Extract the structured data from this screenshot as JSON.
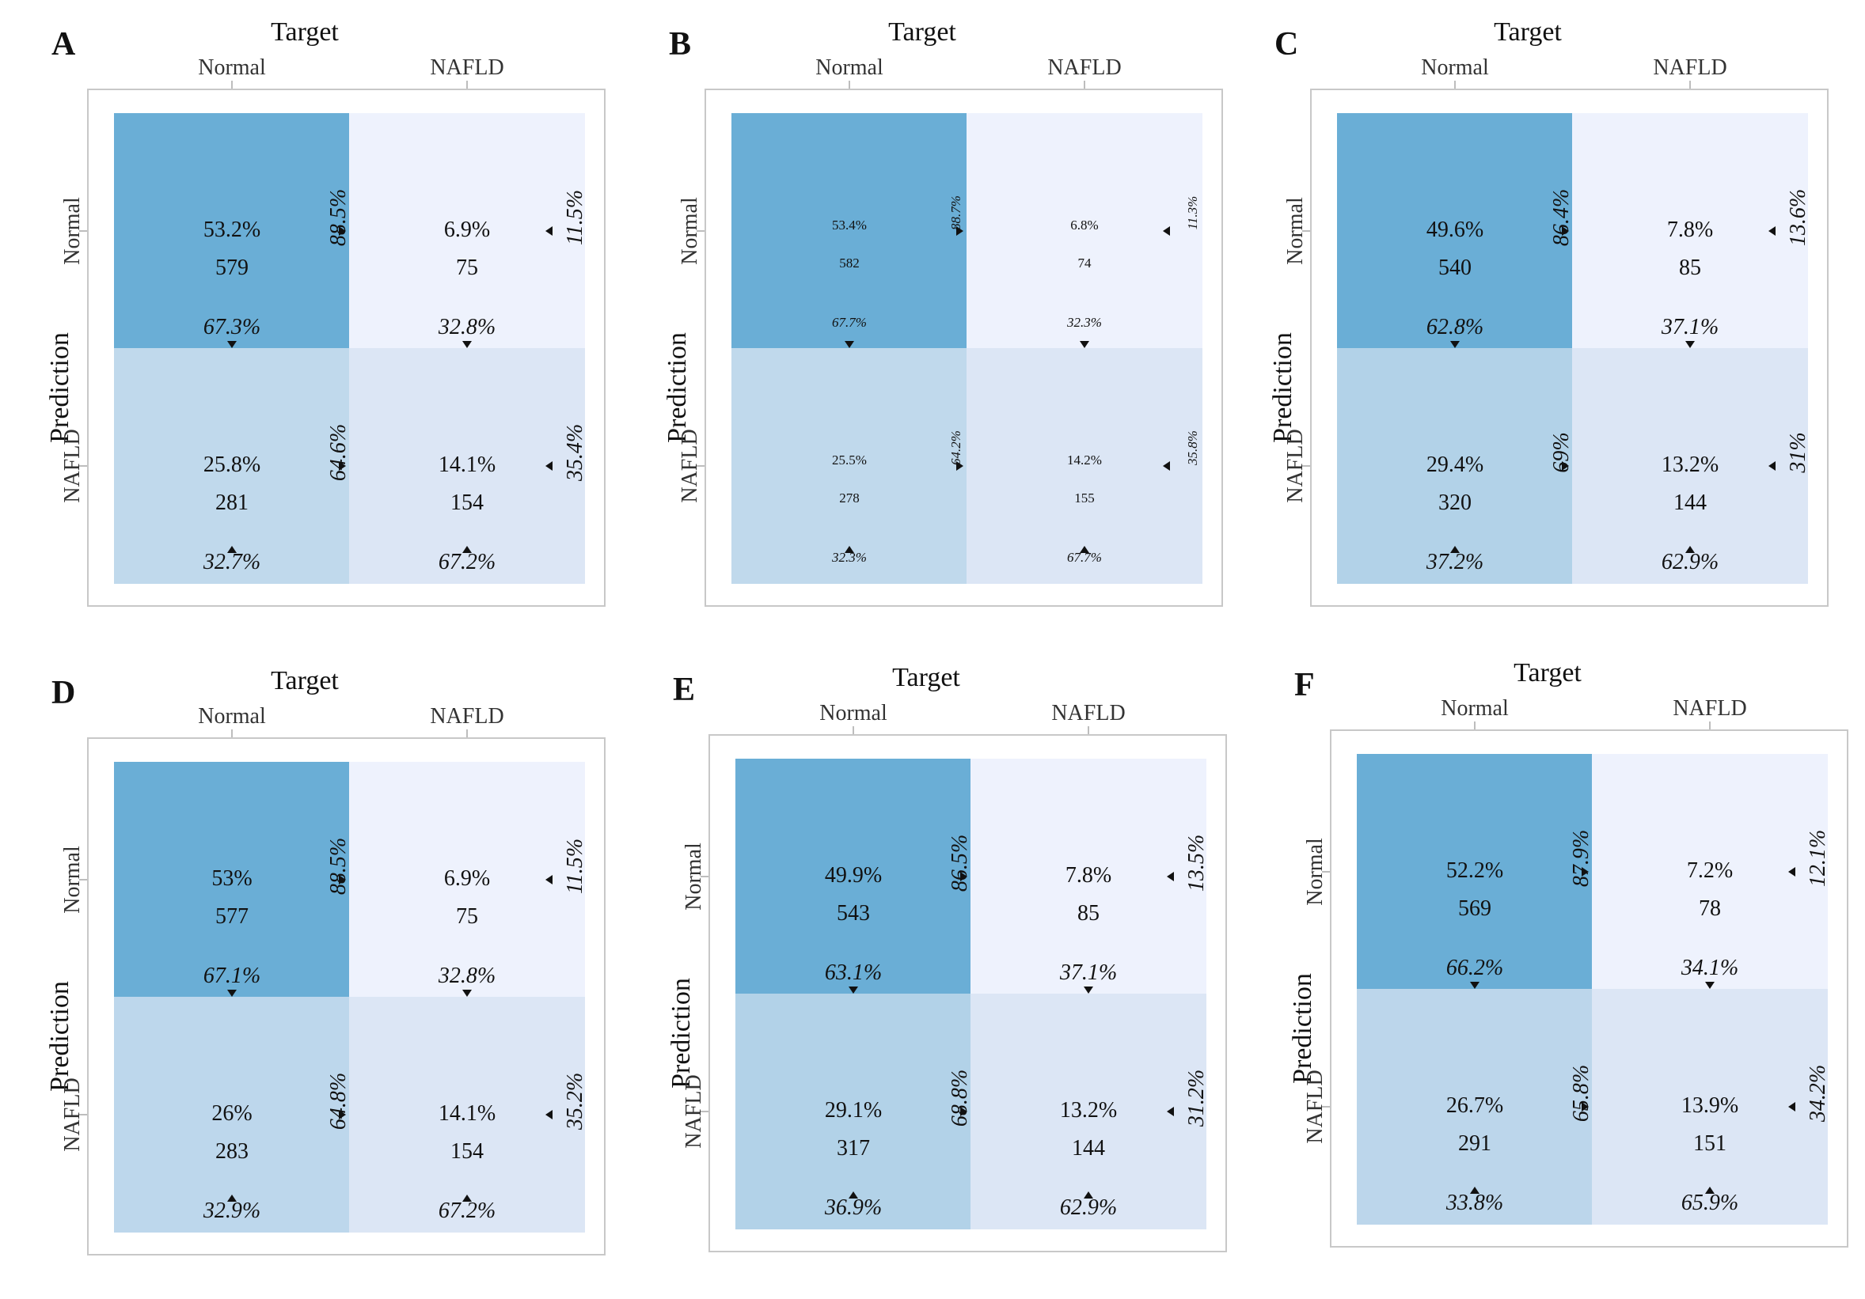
{
  "chart_data": [
    {
      "type": "heatmap",
      "panel": "A",
      "title": "Target",
      "xlabel": "Target",
      "ylabel": "Prediction",
      "columns": [
        "Normal",
        "NAFLD"
      ],
      "rows": [
        "Normal",
        "NAFLD"
      ],
      "cells": [
        [
          {
            "pct": "53.2%",
            "count": "579",
            "row_pct": "88.5%",
            "col_pct": "67.3%"
          },
          {
            "pct": "6.9%",
            "count": "75",
            "row_pct": "11.5%",
            "col_pct": "32.8%"
          }
        ],
        [
          {
            "pct": "25.8%",
            "count": "281",
            "row_pct": "64.6%",
            "col_pct": "32.7%"
          },
          {
            "pct": "14.1%",
            "count": "154",
            "row_pct": "35.4%",
            "col_pct": "67.2%"
          }
        ]
      ],
      "colors": [
        [
          "#6aaed6",
          "#eef2fd"
        ],
        [
          "#c0d9ec",
          "#dce6f5"
        ]
      ]
    },
    {
      "type": "heatmap",
      "panel": "B",
      "title": "Target",
      "xlabel": "Target",
      "ylabel": "Prediction",
      "columns": [
        "Normal",
        "NAFLD"
      ],
      "rows": [
        "Normal",
        "NAFLD"
      ],
      "cells": [
        [
          {
            "pct": "53.4%",
            "count": "582",
            "row_pct": "88.7%",
            "col_pct": "67.7%"
          },
          {
            "pct": "6.8%",
            "count": "74",
            "row_pct": "11.3%",
            "col_pct": "32.3%"
          }
        ],
        [
          {
            "pct": "25.5%",
            "count": "278",
            "row_pct": "64.2%",
            "col_pct": "32.3%"
          },
          {
            "pct": "14.2%",
            "count": "155",
            "row_pct": "35.8%",
            "col_pct": "67.7%"
          }
        ]
      ],
      "colors": [
        [
          "#6aaed6",
          "#eef2fd"
        ],
        [
          "#c0d9ec",
          "#dce6f5"
        ]
      ]
    },
    {
      "type": "heatmap",
      "panel": "C",
      "title": "Target",
      "xlabel": "Target",
      "ylabel": "Prediction",
      "columns": [
        "Normal",
        "NAFLD"
      ],
      "rows": [
        "Normal",
        "NAFLD"
      ],
      "cells": [
        [
          {
            "pct": "49.6%",
            "count": "540",
            "row_pct": "86.4%",
            "col_pct": "62.8%"
          },
          {
            "pct": "7.8%",
            "count": "85",
            "row_pct": "13.6%",
            "col_pct": "37.1%"
          }
        ],
        [
          {
            "pct": "29.4%",
            "count": "320",
            "row_pct": "69%",
            "col_pct": "37.2%"
          },
          {
            "pct": "13.2%",
            "count": "144",
            "row_pct": "31%",
            "col_pct": "62.9%"
          }
        ]
      ],
      "colors": [
        [
          "#6aaed6",
          "#eef2fd"
        ],
        [
          "#b2d2e8",
          "#dce6f5"
        ]
      ]
    },
    {
      "type": "heatmap",
      "panel": "D",
      "title": "Target",
      "xlabel": "Target",
      "ylabel": "Prediction",
      "columns": [
        "Normal",
        "NAFLD"
      ],
      "rows": [
        "Normal",
        "NAFLD"
      ],
      "cells": [
        [
          {
            "pct": "53%",
            "count": "577",
            "row_pct": "88.5%",
            "col_pct": "67.1%"
          },
          {
            "pct": "6.9%",
            "count": "75",
            "row_pct": "11.5%",
            "col_pct": "32.8%"
          }
        ],
        [
          {
            "pct": "26%",
            "count": "283",
            "row_pct": "64.8%",
            "col_pct": "32.9%"
          },
          {
            "pct": "14.1%",
            "count": "154",
            "row_pct": "35.2%",
            "col_pct": "67.2%"
          }
        ]
      ],
      "colors": [
        [
          "#6aaed6",
          "#eef2fd"
        ],
        [
          "#bdd7ec",
          "#dce6f5"
        ]
      ]
    },
    {
      "type": "heatmap",
      "panel": "E",
      "title": "Target",
      "xlabel": "Target",
      "ylabel": "Prediction",
      "columns": [
        "Normal",
        "NAFLD"
      ],
      "rows": [
        "Normal",
        "NAFLD"
      ],
      "cells": [
        [
          {
            "pct": "49.9%",
            "count": "543",
            "row_pct": "86.5%",
            "col_pct": "63.1%"
          },
          {
            "pct": "7.8%",
            "count": "85",
            "row_pct": "13.5%",
            "col_pct": "37.1%"
          }
        ],
        [
          {
            "pct": "29.1%",
            "count": "317",
            "row_pct": "68.8%",
            "col_pct": "36.9%"
          },
          {
            "pct": "13.2%",
            "count": "144",
            "row_pct": "31.2%",
            "col_pct": "62.9%"
          }
        ]
      ],
      "colors": [
        [
          "#6aaed6",
          "#eef2fd"
        ],
        [
          "#b2d2e8",
          "#dce6f5"
        ]
      ]
    },
    {
      "type": "heatmap",
      "panel": "F",
      "title": "Target",
      "xlabel": "Target",
      "ylabel": "Prediction",
      "columns": [
        "Normal",
        "NAFLD"
      ],
      "rows": [
        "Normal",
        "NAFLD"
      ],
      "cells": [
        [
          {
            "pct": "52.2%",
            "count": "569",
            "row_pct": "87.9%",
            "col_pct": "66.2%"
          },
          {
            "pct": "7.2%",
            "count": "78",
            "row_pct": "12.1%",
            "col_pct": "34.1%"
          }
        ],
        [
          {
            "pct": "26.7%",
            "count": "291",
            "row_pct": "65.8%",
            "col_pct": "33.8%"
          },
          {
            "pct": "13.9%",
            "count": "151",
            "row_pct": "34.2%",
            "col_pct": "65.9%"
          }
        ]
      ],
      "colors": [
        [
          "#6aaed6",
          "#eef2fd"
        ],
        [
          "#bcd6eb",
          "#dce6f5"
        ]
      ]
    }
  ]
}
